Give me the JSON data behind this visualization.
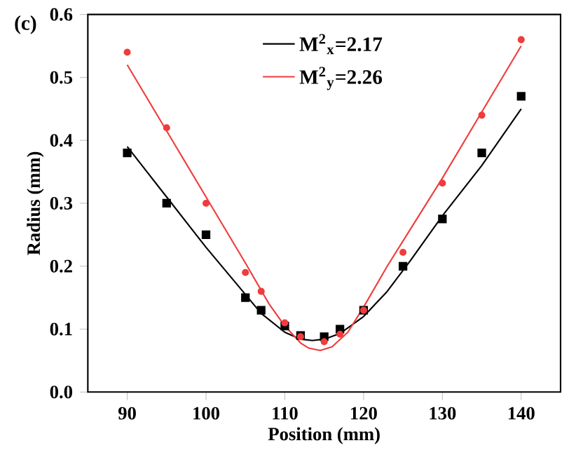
{
  "chart_data": {
    "type": "scatter",
    "annotations": [
      "(c)"
    ],
    "xlabel": "Position (mm)",
    "ylabel": "Radius (mm)",
    "xlim": [
      85,
      145
    ],
    "xticks": [
      90,
      100,
      110,
      120,
      130,
      140
    ],
    "ylim": [
      0,
      0.6
    ],
    "yticks": [
      {
        "value": 0,
        "label": "0.0"
      },
      {
        "value": 0.1,
        "label": "0.1"
      },
      {
        "value": 0.2,
        "label": "0.2"
      },
      {
        "value": 0.3,
        "label": "0.3"
      },
      {
        "value": 0.4,
        "label": "0.4"
      },
      {
        "value": 0.5,
        "label": "0.5"
      },
      {
        "value": 0.6,
        "label": "0.6"
      }
    ],
    "grid": false,
    "legend": "top",
    "series": [
      {
        "marker": "square",
        "color": "#000000",
        "x": [
          90,
          95,
          100,
          105,
          107,
          110,
          112,
          115,
          117,
          120,
          125,
          130,
          135,
          140
        ],
        "values": [
          0.38,
          0.3,
          0.25,
          0.15,
          0.13,
          0.105,
          0.09,
          0.088,
          0.1,
          0.13,
          0.2,
          0.275,
          0.38,
          0.47
        ]
      },
      {
        "marker": "circle",
        "color": "#f03c3c",
        "x": [
          90,
          95,
          100,
          105,
          107,
          110,
          112,
          115,
          117,
          120,
          125,
          130,
          135,
          140
        ],
        "values": [
          0.54,
          0.42,
          0.3,
          0.19,
          0.16,
          0.11,
          0.088,
          0.08,
          0.092,
          0.13,
          0.222,
          0.332,
          0.44,
          0.56
        ]
      },
      {
        "type": "line",
        "name": "M$^{2}$$_{x}$=2.17",
        "color": "#000000",
        "x": [
          90,
          95,
          100,
          104,
          107,
          110,
          112,
          113.5,
          115,
          117,
          120,
          123,
          126,
          130,
          135,
          140
        ],
        "values": [
          0.39,
          0.31,
          0.23,
          0.17,
          0.125,
          0.095,
          0.084,
          0.082,
          0.084,
          0.093,
          0.12,
          0.16,
          0.21,
          0.28,
          0.36,
          0.45
        ]
      },
      {
        "type": "line",
        "name": "M$^{2}$$_{y}$=2.26",
        "color": "#f03c3c",
        "x": [
          90,
          95,
          100,
          105,
          108,
          110,
          112,
          113,
          114.5,
          116,
          118,
          120,
          123,
          126,
          130,
          135,
          140
        ],
        "values": [
          0.52,
          0.415,
          0.31,
          0.205,
          0.14,
          0.105,
          0.078,
          0.07,
          0.066,
          0.072,
          0.095,
          0.135,
          0.2,
          0.26,
          0.34,
          0.445,
          0.55
        ]
      }
    ]
  }
}
